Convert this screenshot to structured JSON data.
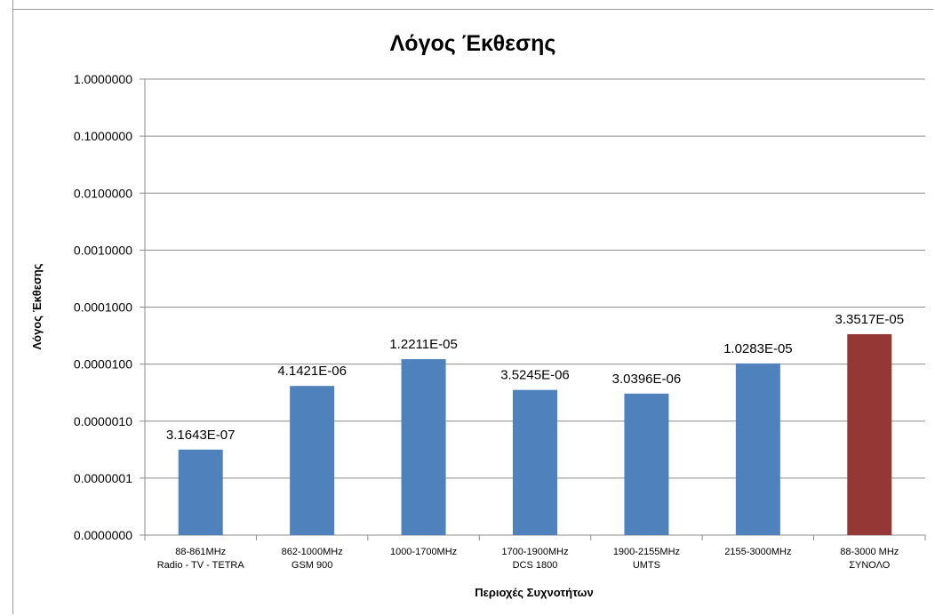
{
  "chart_data": {
    "type": "bar",
    "title": "Λόγος Έκθεσης",
    "xlabel": "Περιοχές Συχνοτήτων",
    "ylabel": "Λόγος Έκθεσης",
    "yscale": "log",
    "ylim": [
      1e-08,
      1
    ],
    "yticks": [
      1e-08,
      1e-07,
      1e-06,
      1e-05,
      0.0001,
      0.001,
      0.01,
      0.1,
      1
    ],
    "ytick_labels": [
      "0.0000000",
      "0.0000001",
      "0.0000010",
      "0.0000100",
      "0.0001000",
      "0.0010000",
      "0.0100000",
      "0.1000000",
      "1.0000000"
    ],
    "grid": "horizontal",
    "legend": "none",
    "categories": [
      [
        "88-861MHz",
        "Radio - TV - TETRA"
      ],
      [
        "862-1000MHz",
        "GSM 900"
      ],
      [
        "1000-1700MHz"
      ],
      [
        "1700-1900MHz",
        "DCS 1800"
      ],
      [
        "1900-2155MHz",
        "UMTS"
      ],
      [
        "2155-3000MHz"
      ],
      [
        "88-3000 MHz",
        "ΣΥΝΟΛΟ"
      ]
    ],
    "values": [
      3.1643e-07,
      4.1421e-06,
      1.2211e-05,
      3.5245e-06,
      3.0396e-06,
      1.0283e-05,
      3.3517e-05
    ],
    "data_labels": [
      "3.1643E-07",
      "4.1421E-06",
      "1.2211E-05",
      "3.5245E-06",
      "3.0396E-06",
      "1.0283E-05",
      "3.3517E-05"
    ],
    "colors": [
      "#4f81bd",
      "#4f81bd",
      "#4f81bd",
      "#4f81bd",
      "#4f81bd",
      "#4f81bd",
      "#953735"
    ]
  }
}
